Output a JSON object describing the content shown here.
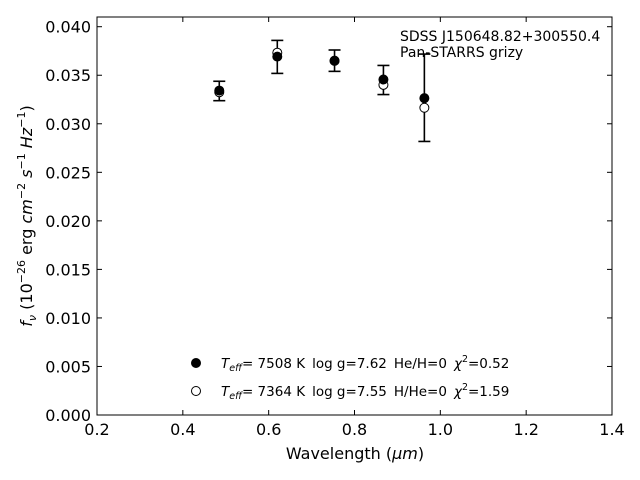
{
  "chart_data": {
    "type": "scatter",
    "annotation": {
      "line1": "SDSS J150648.82+300550.4",
      "line2": "Pan-STARRS grizy"
    },
    "xlabel": {
      "text": "Wavelength (",
      "unit": "μm",
      "close": ")"
    },
    "ylabel": {
      "f": "f",
      "nu": "ν",
      "open": " (10",
      "exp26": "−26",
      "erg": " erg ",
      "cm": "cm",
      "m2": "−2",
      "s": " s",
      "m1a": "−1",
      "hz": " Hz",
      "m1b": "−1",
      "close": ")"
    },
    "xlim": [
      0.2,
      1.4
    ],
    "ylim": [
      0.0,
      0.041
    ],
    "xticks": [
      "0.2",
      "0.4",
      "0.6",
      "0.8",
      "1.0",
      "1.2",
      "1.4"
    ],
    "yticks": [
      "0.000",
      "0.005",
      "0.010",
      "0.015",
      "0.020",
      "0.025",
      "0.030",
      "0.035",
      "0.040"
    ],
    "observed": {
      "x": [
        0.4849,
        0.6201,
        0.7535,
        0.8674,
        0.9628
      ],
      "y": [
        0.03338,
        0.03689,
        0.0365,
        0.03451,
        0.03268
      ],
      "yerr": [
        0.001,
        0.0017,
        0.0011,
        0.0015,
        0.0045
      ]
    },
    "models": [
      {
        "marker": "filled",
        "teff_label": "T",
        "teff_sub": "eff",
        "teff_value": "=  7508 K",
        "logg": "log g=7.62",
        "comp": "He/H=0",
        "chi": "χ",
        "chi_sup": "2",
        "chi_value": "=0.52",
        "x": [
          0.4849,
          0.6201,
          0.7535,
          0.8674,
          0.9628
        ],
        "y": [
          0.03342,
          0.03692,
          0.03648,
          0.03456,
          0.03264
        ]
      },
      {
        "marker": "open",
        "teff_label": "T",
        "teff_sub": "eff",
        "teff_value": "=  7364 K",
        "logg": "log g=7.55",
        "comp": "H/He=0",
        "chi": "χ",
        "chi_sup": "2",
        "chi_value": "=1.59",
        "x": [
          0.4849,
          0.6201,
          0.7535,
          0.8674,
          0.9628
        ],
        "y": [
          0.03325,
          0.03732,
          0.0365,
          0.03401,
          0.03165
        ]
      }
    ],
    "legend_placement": "lower-center",
    "grid": false,
    "colors": {
      "marker": "#000000",
      "open_fill": "#ffffff",
      "axes": "#000000"
    }
  }
}
